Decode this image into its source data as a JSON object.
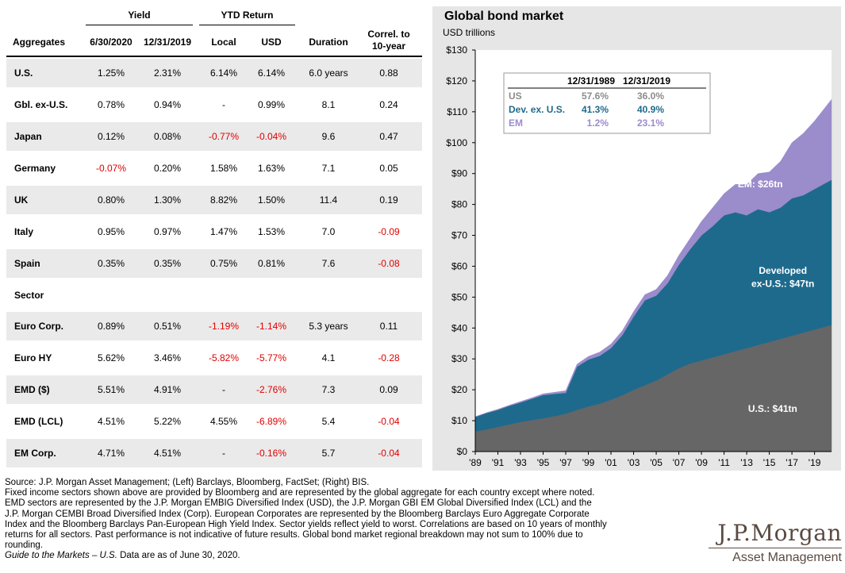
{
  "table": {
    "group_headers": {
      "yield": "Yield",
      "ytd_return": "YTD Return"
    },
    "columns": {
      "aggregates": "Aggregates",
      "yield_1": "6/30/2020",
      "yield_2": "12/31/2019",
      "local": "Local",
      "usd": "USD",
      "duration": "Duration",
      "correl_1": "Correl. to",
      "correl_2": "10-year"
    },
    "aggregates": [
      {
        "name": "U.S.",
        "yield_2020": "1.25%",
        "yield_2019": "2.31%",
        "local": "6.14%",
        "usd": "6.14%",
        "duration": "6.0 years",
        "correl": "0.88"
      },
      {
        "name": "Gbl. ex-U.S.",
        "yield_2020": "0.78%",
        "yield_2019": "0.94%",
        "local": "-",
        "usd": "0.99%",
        "duration": "8.1",
        "correl": "0.24"
      },
      {
        "name": "Japan",
        "yield_2020": "0.12%",
        "yield_2019": "0.08%",
        "local": "-0.77%",
        "usd": "-0.04%",
        "duration": "9.6",
        "correl": "0.47"
      },
      {
        "name": "Germany",
        "yield_2020": "-0.07%",
        "yield_2019": "0.20%",
        "local": "1.58%",
        "usd": "1.63%",
        "duration": "7.1",
        "correl": "0.05"
      },
      {
        "name": "UK",
        "yield_2020": "0.80%",
        "yield_2019": "1.30%",
        "local": "8.82%",
        "usd": "1.50%",
        "duration": "11.4",
        "correl": "0.19"
      },
      {
        "name": "Italy",
        "yield_2020": "0.95%",
        "yield_2019": "0.97%",
        "local": "1.47%",
        "usd": "1.53%",
        "duration": "7.0",
        "correl": "-0.09"
      },
      {
        "name": "Spain",
        "yield_2020": "0.35%",
        "yield_2019": "0.35%",
        "local": "0.75%",
        "usd": "0.81%",
        "duration": "7.6",
        "correl": "-0.08"
      }
    ],
    "sector_label": "Sector",
    "sectors": [
      {
        "name": "Euro Corp.",
        "yield_2020": "0.89%",
        "yield_2019": "0.51%",
        "local": "-1.19%",
        "usd": "-1.14%",
        "duration": "5.3 years",
        "correl": "0.11"
      },
      {
        "name": "Euro HY",
        "yield_2020": "5.62%",
        "yield_2019": "3.46%",
        "local": "-5.82%",
        "usd": "-5.77%",
        "duration": "4.1",
        "correl": "-0.28"
      },
      {
        "name": "EMD ($)",
        "yield_2020": "5.51%",
        "yield_2019": "4.91%",
        "local": "-",
        "usd": "-2.76%",
        "duration": "7.3",
        "correl": "0.09"
      },
      {
        "name": "EMD (LCL)",
        "yield_2020": "4.51%",
        "yield_2019": "5.22%",
        "local": "4.55%",
        "usd": "-6.89%",
        "duration": "5.4",
        "correl": "-0.04"
      },
      {
        "name": "EM Corp.",
        "yield_2020": "4.71%",
        "yield_2019": "4.51%",
        "local": "-",
        "usd": "-0.16%",
        "duration": "5.7",
        "correl": "-0.04"
      }
    ]
  },
  "chart_data": {
    "type": "area",
    "stacked": true,
    "title": "Global bond market",
    "ylabel": "USD trillions",
    "ylim": [
      0,
      130
    ],
    "yticks": [
      0,
      10,
      20,
      30,
      40,
      50,
      60,
      70,
      80,
      90,
      100,
      110,
      120,
      130
    ],
    "ytick_labels": [
      "$0",
      "$10",
      "$20",
      "$30",
      "$40",
      "$50",
      "$60",
      "$70",
      "$80",
      "$90",
      "$100",
      "$110",
      "$120",
      "$130"
    ],
    "xlim": [
      1989,
      2020.5
    ],
    "xticks": [
      1989,
      1991,
      1993,
      1995,
      1997,
      1999,
      2001,
      2003,
      2005,
      2007,
      2009,
      2011,
      2013,
      2015,
      2017,
      2019
    ],
    "xtick_labels": [
      "'89",
      "'91",
      "'93",
      "'95",
      "'97",
      "'99",
      "'01",
      "'03",
      "'05",
      "'07",
      "'09",
      "'11",
      "'13",
      "'15",
      "'17",
      "'19"
    ],
    "x": [
      1989,
      1990,
      1991,
      1992,
      1993,
      1994,
      1995,
      1996,
      1997,
      1998,
      1999,
      2000,
      2001,
      2002,
      2003,
      2004,
      2005,
      2006,
      2007,
      2008,
      2009,
      2010,
      2011,
      2012,
      2013,
      2014,
      2015,
      2016,
      2017,
      2018,
      2019,
      2020.5
    ],
    "series": [
      {
        "name": "U.S.",
        "color": "#666666",
        "values": [
          6.5,
          7.2,
          8.0,
          8.8,
          9.6,
          10.2,
          10.8,
          11.5,
          12.3,
          13.5,
          14.6,
          15.5,
          16.8,
          18.2,
          20.0,
          21.5,
          23.0,
          25.0,
          27.0,
          28.5,
          29.5,
          30.5,
          31.5,
          32.5,
          33.5,
          34.5,
          35.5,
          36.5,
          37.5,
          38.5,
          39.5,
          41.0
        ]
      },
      {
        "name": "Dev. ex. U.S.",
        "color": "#1e6a8c",
        "values": [
          4.7,
          5.3,
          5.5,
          6.0,
          6.3,
          6.9,
          7.5,
          7.2,
          6.7,
          14.0,
          15.2,
          15.5,
          16.7,
          19.5,
          23.7,
          27.5,
          27.5,
          29.5,
          33.5,
          37.0,
          40.5,
          42.5,
          45.0,
          45.0,
          43.0,
          44.0,
          42.0,
          42.5,
          44.5,
          44.5,
          45.5,
          47.0
        ]
      },
      {
        "name": "EM",
        "color": "#9b8ccc",
        "values": [
          0.1,
          0.1,
          0.2,
          0.2,
          0.3,
          0.3,
          0.4,
          0.5,
          0.7,
          0.8,
          1.0,
          1.2,
          1.3,
          1.4,
          1.6,
          1.8,
          2.0,
          2.5,
          3.0,
          3.5,
          4.5,
          6.0,
          7.0,
          9.0,
          10.0,
          11.5,
          13.0,
          15.0,
          18.0,
          20.0,
          22.0,
          26.0
        ]
      }
    ],
    "annotations": {
      "em": "EM: $26tn",
      "dev_1": "Developed",
      "dev_2": "ex-U.S.: $47tn",
      "us": "U.S.: $41tn"
    },
    "inset_table": {
      "headers": [
        "12/31/1989",
        "12/31/2019"
      ],
      "rows": [
        {
          "label": "US",
          "v1": "57.6%",
          "v2": "36.0%",
          "color": "#8c8c8c"
        },
        {
          "label": "Dev. ex. U.S.",
          "v1": "41.3%",
          "v2": "40.9%",
          "color": "#1e6a8c"
        },
        {
          "label": "EM",
          "v1": "1.2%",
          "v2": "23.1%",
          "color": "#9b8ccc"
        }
      ]
    }
  },
  "footnotes": {
    "line1": "Source: J.P. Morgan Asset Management; (Left) Barclays, Bloomberg, FactSet; (Right) BIS.",
    "line2": "Fixed income sectors shown above are provided by Bloomberg and are represented by the global aggregate for each country except where noted.",
    "line3": "EMD sectors are represented by the J.P. Morgan EMBIG Diversified Index (USD), the J.P. Morgan GBI EM Global Diversified Index (LCL) and the",
    "line4": "J.P. Morgan CEMBI Broad Diversified Index (Corp). European Corporates are represented by the Bloomberg Barclays Euro Aggregate Corporate",
    "line5": "Index and the Bloomberg Barclays Pan-European High Yield Index. Sector yields reflect yield to worst. Correlations are based on 10 years of monthly",
    "line6": "returns for all sectors. Past performance is not indicative of future results. Global bond market regional breakdown may not sum to 100% due to",
    "line7": "rounding.",
    "guide": "Guide to the Markets – U.S.",
    "asof": " Data are as of June 30, 2020."
  },
  "logo": {
    "name": "J.P.Morgan",
    "sub": "Asset Management"
  }
}
